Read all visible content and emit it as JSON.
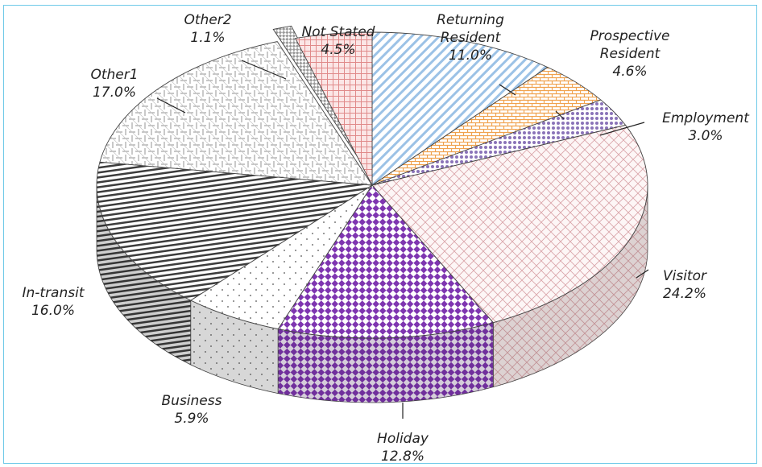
{
  "chart_data": {
    "type": "pie",
    "style": "3d-exploded",
    "title": "",
    "slices": [
      {
        "label": "Returning Resident",
        "value": 11.0,
        "display": "11.0%",
        "pattern": "diag",
        "color": "#9cc2e6"
      },
      {
        "label": "Prospective Resident",
        "value": 4.6,
        "display": "4.6%",
        "pattern": "brick",
        "color": "#f0a24e"
      },
      {
        "label": "Employment",
        "value": 3.0,
        "display": "3.0%",
        "pattern": "dots",
        "color": "#8a73b8"
      },
      {
        "label": "Visitor",
        "value": 24.2,
        "display": "24.2%",
        "pattern": "lattice",
        "color": "#d9a3a8"
      },
      {
        "label": "Holiday",
        "value": 12.8,
        "display": "12.8%",
        "pattern": "checker",
        "color": "#7e35b0"
      },
      {
        "label": "Business",
        "value": 5.9,
        "display": "5.9%",
        "pattern": "sparse-dots",
        "color": "#8e8e8e"
      },
      {
        "label": "In-transit",
        "value": 16.0,
        "display": "16.0%",
        "pattern": "hlines",
        "color": "#3c3c3c"
      },
      {
        "label": "Other1",
        "value": 17.0,
        "display": "17.0%",
        "pattern": "weave",
        "color": "#b0b0b0"
      },
      {
        "label": "Other2",
        "value": 1.1,
        "display": "1.1%",
        "pattern": "check-small",
        "color": "#9a9a9a"
      },
      {
        "label": "Not Stated",
        "value": 4.5,
        "display": "4.5%",
        "pattern": "grid",
        "color": "#e08a8a"
      }
    ]
  },
  "frame_color": "#6ec9e8"
}
